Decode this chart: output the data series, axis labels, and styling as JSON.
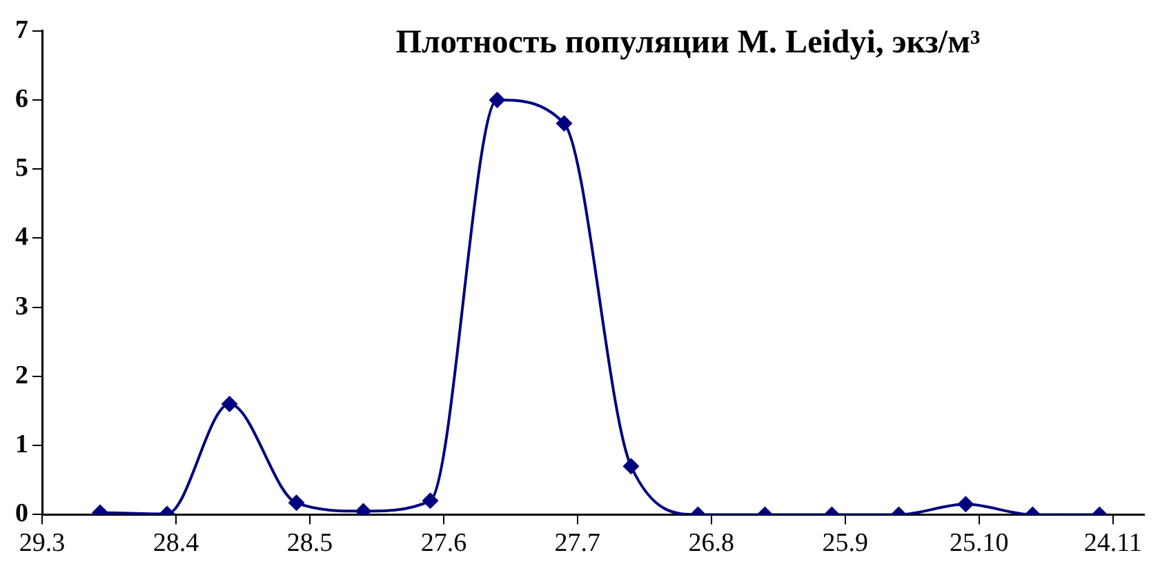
{
  "chart_data": {
    "type": "line",
    "title": "Плотность популяции M. Leidyi, экз/м³",
    "x": [
      "--04-11",
      "--04-26",
      "--05-10",
      "--05-25",
      "--06-09",
      "--06-24",
      "--07-09",
      "--07-24",
      "--08-08",
      "--08-23",
      "--09-07",
      "--09-22",
      "--10-07",
      "--10-22",
      "--11-06",
      "--11-21"
    ],
    "series": [
      {
        "color": "#000080",
        "values": [
          0.03,
          0.01,
          1.6,
          0.17,
          0.05,
          0.2,
          6.0,
          5.66,
          0.7,
          0.0,
          0.0,
          0.0,
          0.0,
          0.15,
          0.0,
          0.0
        ]
      }
    ],
    "xlim": [
      "--03-29",
      "--12-01"
    ],
    "xticks": [
      {
        "value": "--03-29",
        "label": "29.3"
      },
      {
        "value": "--04-28",
        "label": "28.4"
      },
      {
        "value": "--05-28",
        "label": "28.5"
      },
      {
        "value": "--06-27",
        "label": "27.6"
      },
      {
        "value": "--07-27",
        "label": "27.7"
      },
      {
        "value": "--08-26",
        "label": "26.8"
      },
      {
        "value": "--09-25",
        "label": "25.9"
      },
      {
        "value": "--10-25",
        "label": "25.10"
      },
      {
        "value": "--11-24",
        "label": "24.11"
      }
    ],
    "ylim": [
      0,
      7
    ],
    "yticks": [
      0,
      1,
      2,
      3,
      4,
      5,
      6,
      7
    ],
    "grid": false,
    "legend": false,
    "marker": "diamond",
    "line_style": "solid"
  }
}
